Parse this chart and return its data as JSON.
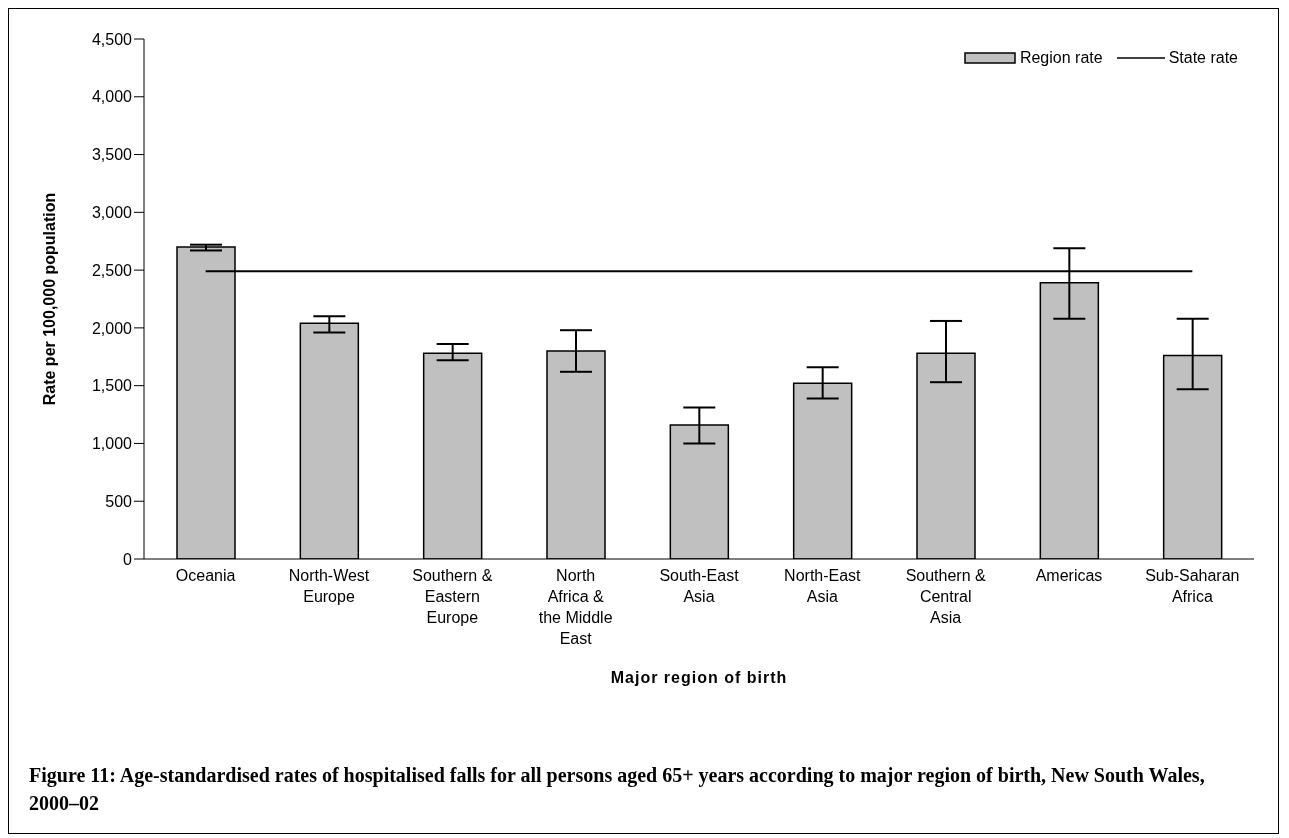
{
  "chart_data": {
    "type": "bar",
    "title": "Figure 11: Age-standardised rates of hospitalised falls for all persons aged 65+ years according to major region of birth, New South Wales, 2000–02",
    "xlabel": "Major region of birth",
    "ylabel": "Rate per 100,000 population",
    "categories": [
      "Oceania",
      "North-West Europe",
      "Southern & Eastern Europe",
      "North Africa & the Middle East",
      "South-East Asia",
      "North-East Asia",
      "Southern & Central Asia",
      "Americas",
      "Sub-Saharan Africa"
    ],
    "series": [
      {
        "name": "Region rate",
        "color": "#c0c0c0",
        "values": [
          2700,
          2040,
          1780,
          1800,
          1160,
          1520,
          1780,
          2390,
          1760
        ],
        "errors": [
          [
            2670,
            2720
          ],
          [
            1960,
            2100
          ],
          [
            1720,
            1860
          ],
          [
            1620,
            1980
          ],
          [
            1000,
            1310
          ],
          [
            1390,
            1660
          ],
          [
            1530,
            2060
          ],
          [
            2080,
            2690
          ],
          [
            1470,
            2080
          ]
        ]
      },
      {
        "name": "State rate",
        "type": "line",
        "color": "#000000",
        "values": [
          2490,
          2490,
          2490,
          2490,
          2490,
          2490,
          2490,
          2490,
          2490
        ]
      }
    ],
    "ylim": [
      0,
      4500
    ],
    "yticks": [
      0,
      500,
      {
        "value": 1000,
        "label": "1,000"
      },
      {
        "value": 1500,
        "label": "1,500"
      },
      {
        "value": 2000,
        "label": "2,000"
      },
      {
        "value": 2500,
        "label": "2,500"
      },
      {
        "value": 3000,
        "label": "3,000"
      },
      {
        "value": 3500,
        "label": "3,500"
      },
      {
        "value": 4000,
        "label": "4,000"
      },
      {
        "value": 4500,
        "label": "4,500"
      }
    ],
    "legend": "top right",
    "marker": "none",
    "line_style": "solid"
  }
}
